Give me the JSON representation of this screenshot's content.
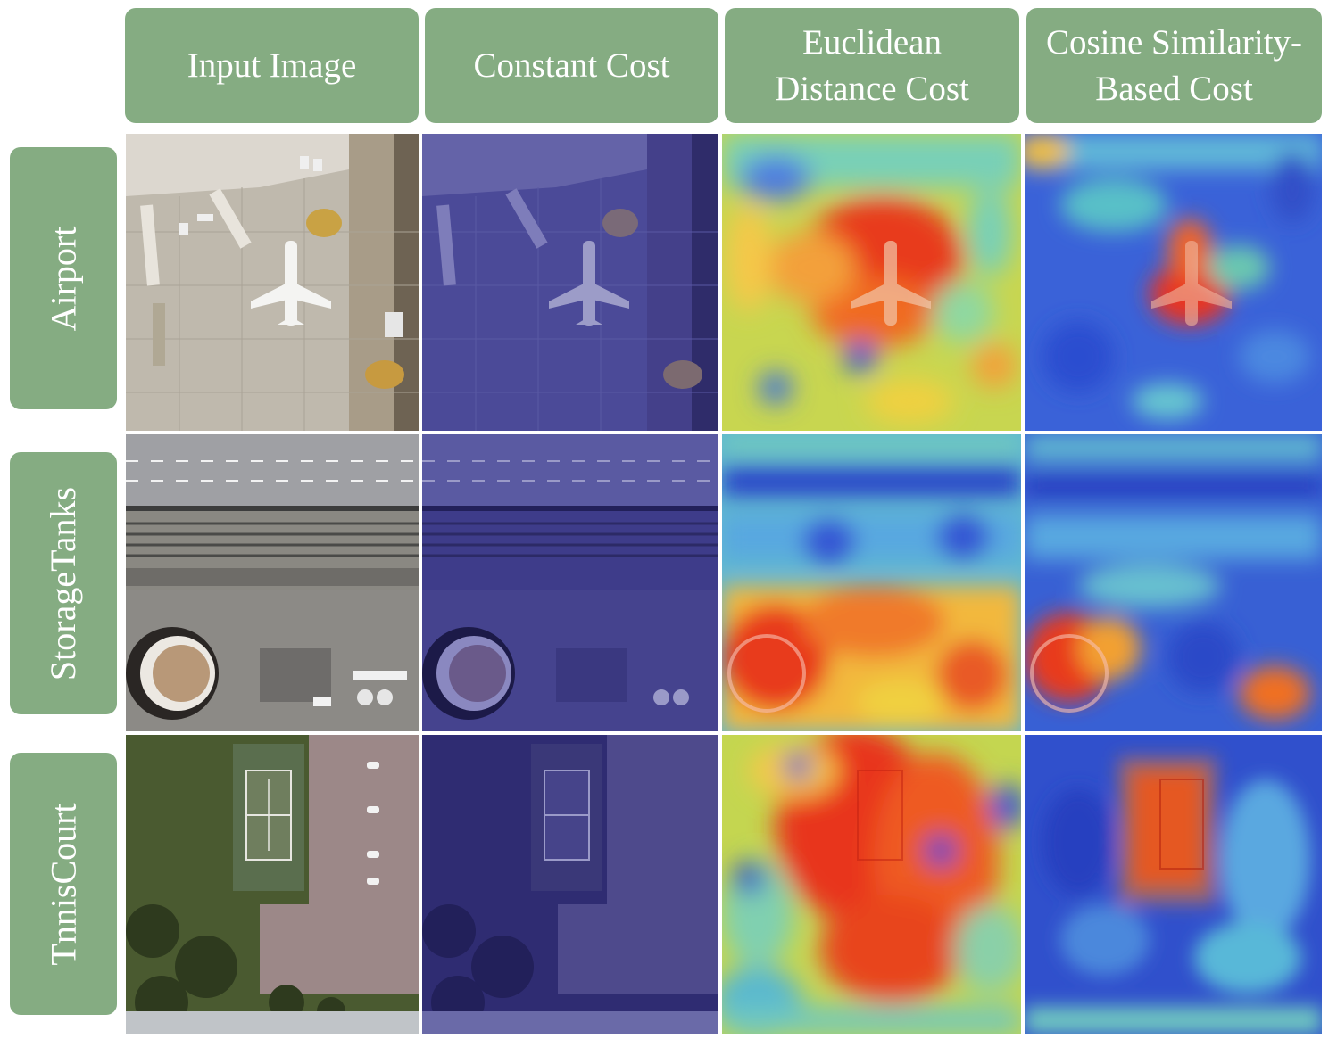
{
  "columns": [
    {
      "title_line1": "Input Image",
      "title_line2": ""
    },
    {
      "title_line1": "Constant Cost",
      "title_line2": ""
    },
    {
      "title_line1": "Euclidean",
      "title_line2": "Distance Cost"
    },
    {
      "title_line1": "Cosine Similarity-",
      "title_line2": "Based Cost"
    }
  ],
  "rows": [
    {
      "label": "Airport"
    },
    {
      "label": "StorageTanks"
    },
    {
      "label": "TnnisCourt"
    }
  ],
  "colors": {
    "header_bg": "#85ac82",
    "header_text": "#ffffff",
    "constant_overlay": "#3a3a9c"
  }
}
